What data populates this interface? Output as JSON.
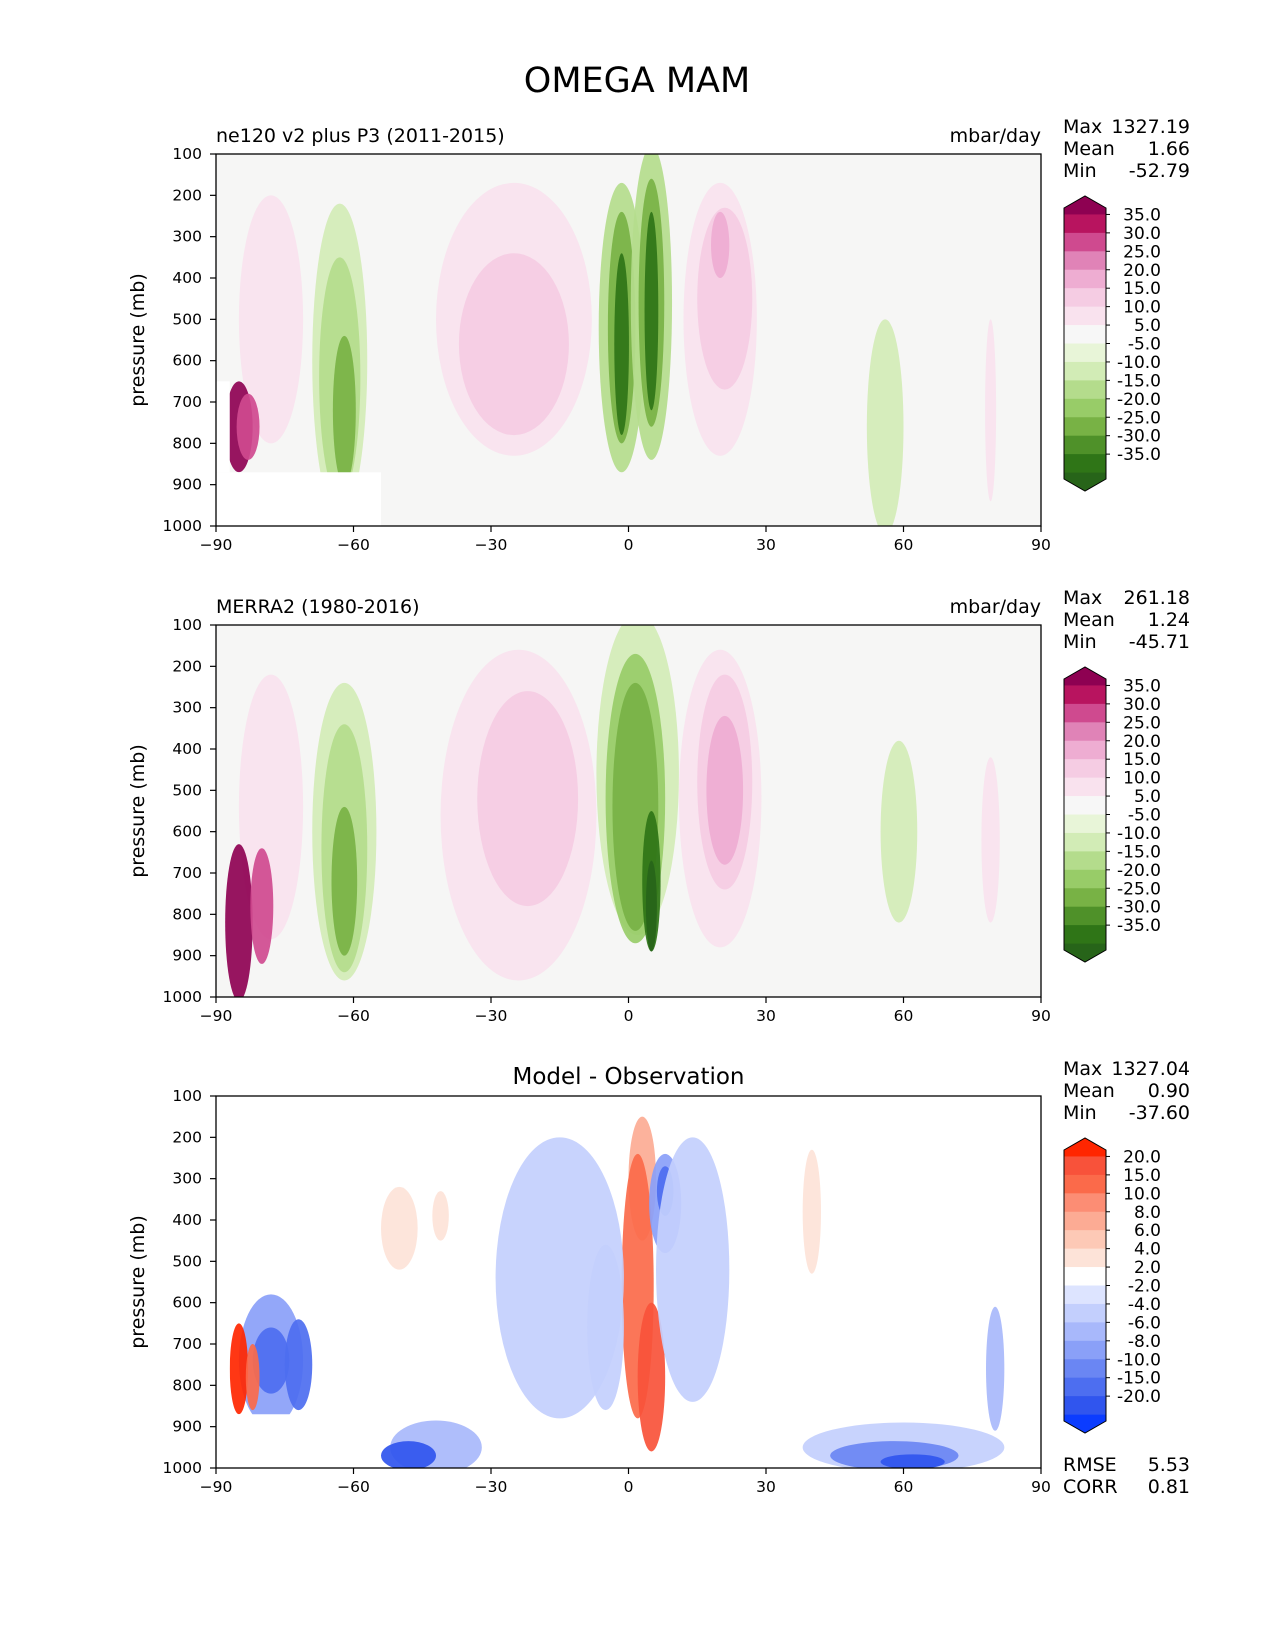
{
  "figure": {
    "title": "OMEGA MAM"
  },
  "chart_data": [
    {
      "type": "heatmap",
      "title": "ne120 v2 plus P3 (2011-2015)",
      "units": "mbar/day",
      "xlabel": "",
      "ylabel": "pressure (mb)",
      "xlim": [
        -90,
        90
      ],
      "ylim": [
        1000,
        100
      ],
      "xticks": [
        "−90",
        "−60",
        "−30",
        "0",
        "30",
        "60",
        "90"
      ],
      "yticks": [
        "100",
        "200",
        "300",
        "400",
        "500",
        "600",
        "700",
        "800",
        "900",
        "1000"
      ],
      "stats": [
        [
          "Max",
          "1327.19"
        ],
        [
          "Mean",
          "1.66"
        ],
        [
          "Min",
          "-52.79"
        ]
      ],
      "colorbar": {
        "labels": [
          "35.0",
          "30.0",
          "25.0",
          "20.0",
          "15.0",
          "10.0",
          "5.0",
          "-5.0",
          "-10.0",
          "-15.0",
          "-20.0",
          "-25.0",
          "-30.0",
          "-35.0"
        ],
        "colors": [
          "#8e0152",
          "#b8145f",
          "#cf4a8f",
          "#e083b7",
          "#eeadd2",
          "#f5ccE3",
          "#f9e2ee",
          "#f7f7f7",
          "#e8f5d8",
          "#d2ecb6",
          "#b4dc8c",
          "#98cc68",
          "#78b245",
          "#4f9129",
          "#2f7517",
          "#276419"
        ]
      }
    },
    {
      "type": "heatmap",
      "title": "MERRA2 (1980-2016)",
      "units": "mbar/day",
      "xlabel": "",
      "ylabel": "pressure (mb)",
      "xlim": [
        -90,
        90
      ],
      "ylim": [
        1000,
        100
      ],
      "xticks": [
        "−90",
        "−60",
        "−30",
        "0",
        "30",
        "60",
        "90"
      ],
      "yticks": [
        "100",
        "200",
        "300",
        "400",
        "500",
        "600",
        "700",
        "800",
        "900",
        "1000"
      ],
      "stats": [
        [
          "Max",
          "261.18"
        ],
        [
          "Mean",
          "1.24"
        ],
        [
          "Min",
          "-45.71"
        ]
      ],
      "colorbar": {
        "labels": [
          "35.0",
          "30.0",
          "25.0",
          "20.0",
          "15.0",
          "10.0",
          "5.0",
          "-5.0",
          "-10.0",
          "-15.0",
          "-20.0",
          "-25.0",
          "-30.0",
          "-35.0"
        ],
        "colors": [
          "#8e0152",
          "#b8145f",
          "#cf4a8f",
          "#e083b7",
          "#eeadd2",
          "#f5ccE3",
          "#f9e2ee",
          "#f7f7f7",
          "#e8f5d8",
          "#d2ecb6",
          "#b4dc8c",
          "#98cc68",
          "#78b245",
          "#4f9129",
          "#2f7517",
          "#276419"
        ]
      }
    },
    {
      "type": "heatmap",
      "title": "Model - Observation",
      "units": "",
      "xlabel": "",
      "ylabel": "pressure (mb)",
      "xlim": [
        -90,
        90
      ],
      "ylim": [
        1000,
        100
      ],
      "xticks": [
        "−90",
        "−60",
        "−30",
        "0",
        "30",
        "60",
        "90"
      ],
      "yticks": [
        "100",
        "200",
        "300",
        "400",
        "500",
        "600",
        "700",
        "800",
        "900",
        "1000"
      ],
      "stats": [
        [
          "Max",
          "1327.04"
        ],
        [
          "Mean",
          "0.90"
        ],
        [
          "Min",
          "-37.60"
        ]
      ],
      "extra_stats": [
        [
          "RMSE",
          "5.53"
        ],
        [
          "CORR",
          "0.81"
        ]
      ],
      "colorbar": {
        "labels": [
          "20.0",
          "15.0",
          "10.0",
          "8.0",
          "6.0",
          "4.0",
          "2.0",
          "-2.0",
          "-4.0",
          "-6.0",
          "-8.0",
          "-10.0",
          "-15.0",
          "-20.0"
        ],
        "colors": [
          "#ff2600",
          "#f8523a",
          "#fb6a4a",
          "#fc8d74",
          "#fcab94",
          "#fdc9b6",
          "#fde3d8",
          "#ffffff",
          "#dde4ff",
          "#c3cffd",
          "#a8b8fb",
          "#8aa0f8",
          "#6a86f3",
          "#4d6ef0",
          "#3055ee",
          "#0b3cff"
        ]
      }
    }
  ]
}
